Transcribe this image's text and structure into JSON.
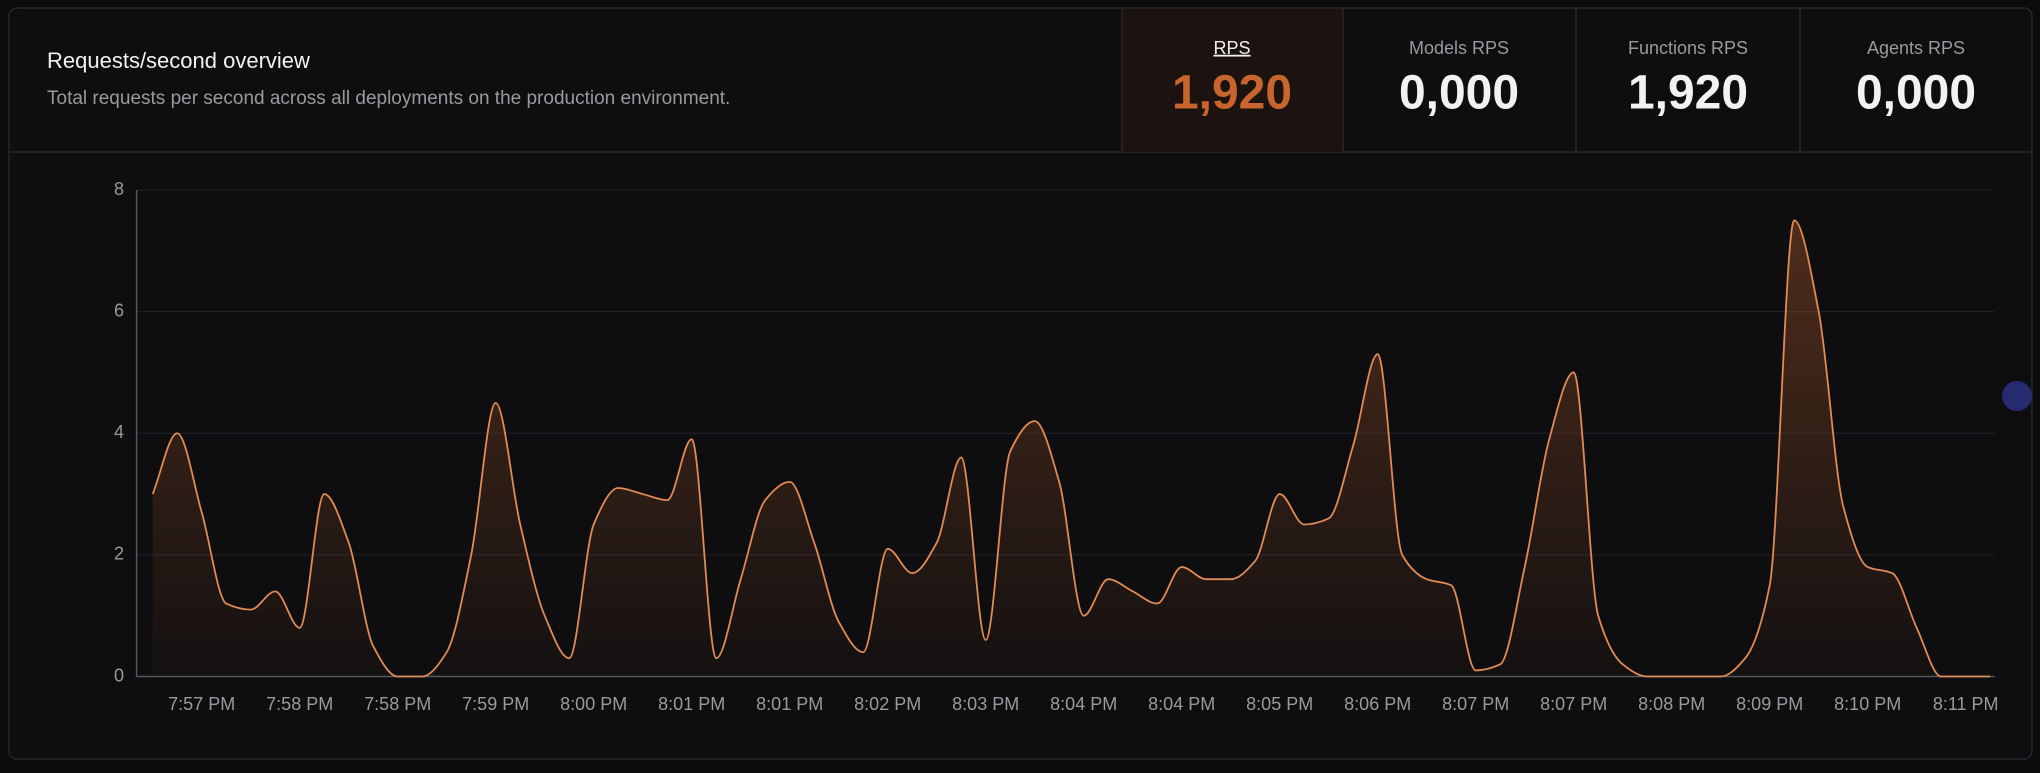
{
  "header": {
    "title": "Requests/second overview",
    "subtitle": "Total requests per second across all deployments on the production environment."
  },
  "stats": [
    {
      "label": "RPS",
      "value": "1,920"
    },
    {
      "label": "Models RPS",
      "value": "0,000"
    },
    {
      "label": "Functions RPS",
      "value": "1,920"
    },
    {
      "label": "Agents RPS",
      "value": "0,000"
    }
  ],
  "chart_data": {
    "type": "area",
    "categories": [
      null,
      null,
      "7:57 PM",
      null,
      null,
      null,
      "7:58 PM",
      null,
      null,
      null,
      "7:58 PM",
      null,
      null,
      null,
      "7:59 PM",
      null,
      null,
      null,
      "8:00 PM",
      null,
      null,
      null,
      "8:01 PM",
      null,
      null,
      null,
      "8:01 PM",
      null,
      null,
      null,
      "8:02 PM",
      null,
      null,
      null,
      "8:03 PM",
      null,
      null,
      null,
      "8:04 PM",
      null,
      null,
      null,
      "8:04 PM",
      null,
      null,
      null,
      "8:05 PM",
      null,
      null,
      null,
      "8:06 PM",
      null,
      null,
      null,
      "8:07 PM",
      null,
      null,
      null,
      "8:07 PM",
      null,
      null,
      null,
      "8:08 PM",
      null,
      null,
      null,
      "8:09 PM",
      null,
      null,
      null,
      "8:10 PM",
      null,
      null,
      null,
      "8:11 PM",
      null
    ],
    "values": [
      3.0,
      4.0,
      2.7,
      1.2,
      1.1,
      1.4,
      0.8,
      3.0,
      2.2,
      0.5,
      0,
      0,
      0.4,
      2.0,
      4.5,
      2.5,
      1.0,
      0.3,
      2.5,
      3.1,
      3.0,
      2.9,
      3.9,
      0.3,
      1.6,
      2.9,
      3.2,
      2.2,
      0.9,
      0.4,
      2.1,
      1.7,
      2.2,
      3.6,
      0.6,
      3.7,
      4.2,
      3.2,
      1.0,
      1.6,
      1.4,
      1.2,
      1.8,
      1.6,
      1.6,
      1.9,
      3.0,
      2.5,
      2.6,
      3.8,
      5.3,
      2.0,
      1.6,
      1.5,
      0.1,
      0.2,
      1.8,
      3.9,
      5.0,
      1.0,
      0.2,
      0,
      0,
      0,
      0,
      0.3,
      1.5,
      7.5,
      6.0,
      2.8,
      1.8,
      1.7,
      0.8,
      0,
      0,
      0
    ],
    "color": "#e08a55",
    "ylim": [
      0,
      8
    ],
    "yticks": [
      0,
      2,
      4,
      6,
      8
    ],
    "grid": true
  }
}
